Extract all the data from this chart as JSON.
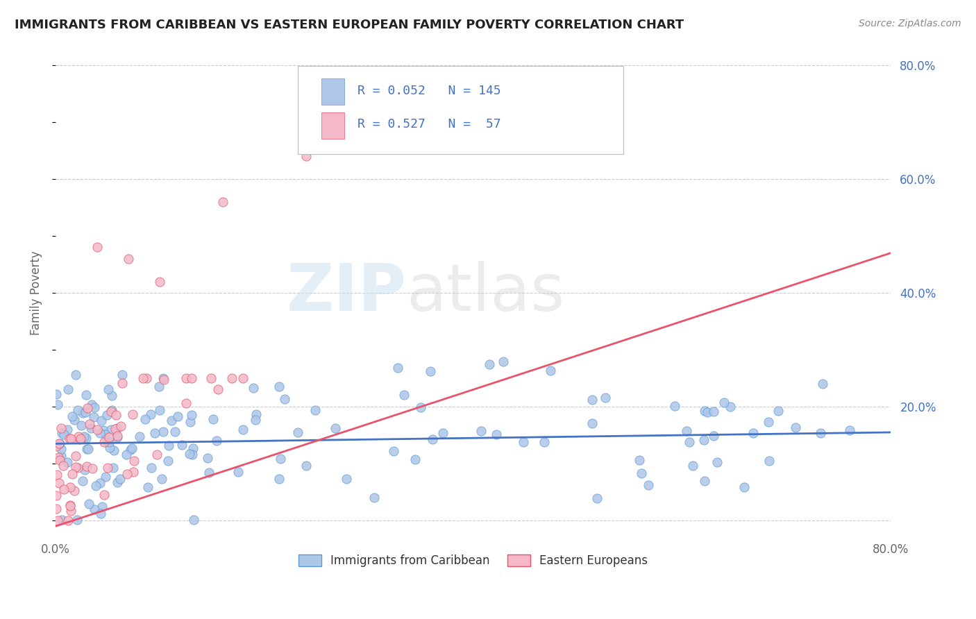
{
  "title": "IMMIGRANTS FROM CARIBBEAN VS EASTERN EUROPEAN FAMILY POVERTY CORRELATION CHART",
  "source_text": "Source: ZipAtlas.com",
  "ylabel": "Family Poverty",
  "watermark_zip": "ZIP",
  "watermark_atlas": "atlas",
  "xlim": [
    0.0,
    0.8
  ],
  "ylim": [
    -0.02,
    0.82
  ],
  "ytick_positions": [
    0.0,
    0.2,
    0.4,
    0.6,
    0.8
  ],
  "ytick_labels_right": [
    "",
    "20.0%",
    "40.0%",
    "60.0%",
    "80.0%"
  ],
  "caribbean_color": "#aec6e8",
  "caribbean_color_dark": "#5b9bd5",
  "eastern_color": "#f4b8c8",
  "eastern_color_dark": "#e8536a",
  "R_caribbean": 0.052,
  "N_caribbean": 145,
  "R_eastern": 0.527,
  "N_eastern": 57,
  "legend_label_caribbean": "Immigrants from Caribbean",
  "legend_label_eastern": "Eastern Europeans",
  "background_color": "#ffffff",
  "grid_color": "#cccccc",
  "title_color": "#222222",
  "blue_line_color": "#4472c4",
  "pink_line_color": "#e8536a",
  "blue_line_y0": 0.135,
  "blue_line_y1": 0.155,
  "pink_line_y0": -0.01,
  "pink_line_y1": 0.47
}
